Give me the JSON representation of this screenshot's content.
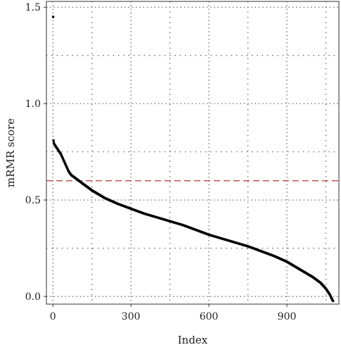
{
  "chart_data": {
    "type": "scatter",
    "title": "",
    "xlabel": "Index",
    "ylabel": "mRMR score",
    "xlim": [
      -25,
      1100
    ],
    "ylim": [
      -0.04,
      1.53
    ],
    "x_ticks": [
      0,
      300,
      600,
      900
    ],
    "x_tick_labels": [
      "0",
      "300",
      "600",
      "900"
    ],
    "y_ticks": [
      0.0,
      0.5,
      1.0,
      1.5
    ],
    "y_tick_labels": [
      "0.0",
      "0.5",
      "1.0",
      "1.5"
    ],
    "grid": "dotted",
    "threshold": {
      "y": 0.6,
      "style": "dashed",
      "color": "#b03a3a"
    },
    "series": [
      {
        "color": "#000000",
        "points": [
          [
            1,
            1.45
          ],
          [
            2,
            0.81
          ],
          [
            5,
            0.79
          ],
          [
            10,
            0.78
          ],
          [
            15,
            0.77
          ],
          [
            20,
            0.76
          ],
          [
            25,
            0.75
          ],
          [
            30,
            0.74
          ],
          [
            40,
            0.71
          ],
          [
            50,
            0.68
          ],
          [
            60,
            0.65
          ],
          [
            70,
            0.63
          ],
          [
            80,
            0.62
          ],
          [
            90,
            0.61
          ],
          [
            100,
            0.6
          ],
          [
            120,
            0.58
          ],
          [
            150,
            0.55
          ],
          [
            200,
            0.51
          ],
          [
            250,
            0.48
          ],
          [
            300,
            0.455
          ],
          [
            350,
            0.43
          ],
          [
            400,
            0.41
          ],
          [
            450,
            0.39
          ],
          [
            500,
            0.37
          ],
          [
            550,
            0.345
          ],
          [
            600,
            0.32
          ],
          [
            650,
            0.3
          ],
          [
            700,
            0.28
          ],
          [
            750,
            0.26
          ],
          [
            800,
            0.235
          ],
          [
            850,
            0.21
          ],
          [
            900,
            0.18
          ],
          [
            950,
            0.14
          ],
          [
            1000,
            0.1
          ],
          [
            1030,
            0.07
          ],
          [
            1050,
            0.04
          ],
          [
            1065,
            0.01
          ],
          [
            1072,
            -0.01
          ],
          [
            1078,
            -0.025
          ]
        ]
      }
    ]
  }
}
